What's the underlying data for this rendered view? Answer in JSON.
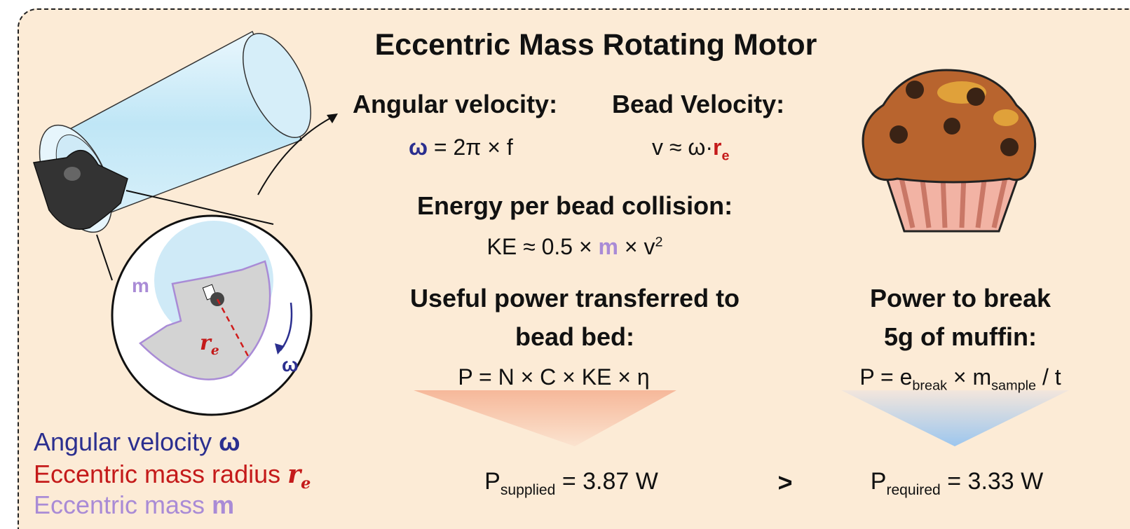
{
  "title": "Eccentric Mass Rotating Motor",
  "angular_velocity": {
    "label": "Angular velocity:",
    "formula": [
      "ω",
      " = 2π × f"
    ]
  },
  "bead_velocity": {
    "label": "Bead Velocity:",
    "formula": [
      "v ≈ ω·",
      "r",
      "e"
    ]
  },
  "energy": {
    "label": "Energy per bead collision:",
    "formula": [
      "KE ≈ 0.5 × ",
      "m",
      " × v",
      "2"
    ]
  },
  "useful_power": {
    "label": [
      "Useful power transferred to",
      "bead bed:"
    ],
    "formula": "P = N × C × KE × η",
    "result": [
      "P",
      "supplied",
      " = 3.87 W"
    ]
  },
  "comparison": ">",
  "break_power": {
    "label": [
      "Power to break",
      "5g of muffin:"
    ],
    "formula": [
      "P = e",
      "break",
      " × m",
      "sample",
      " / t"
    ],
    "result": [
      "P",
      "required",
      " = 3.33 W"
    ]
  },
  "diagram_labels": {
    "mass": "m",
    "radius": [
      "r",
      "e"
    ],
    "omega": "ω"
  },
  "legend": [
    [
      "Angular velocity ",
      "ω"
    ],
    [
      "Eccentric mass radius ",
      "r",
      "e"
    ],
    [
      "Eccentric mass ",
      "m"
    ]
  ]
}
